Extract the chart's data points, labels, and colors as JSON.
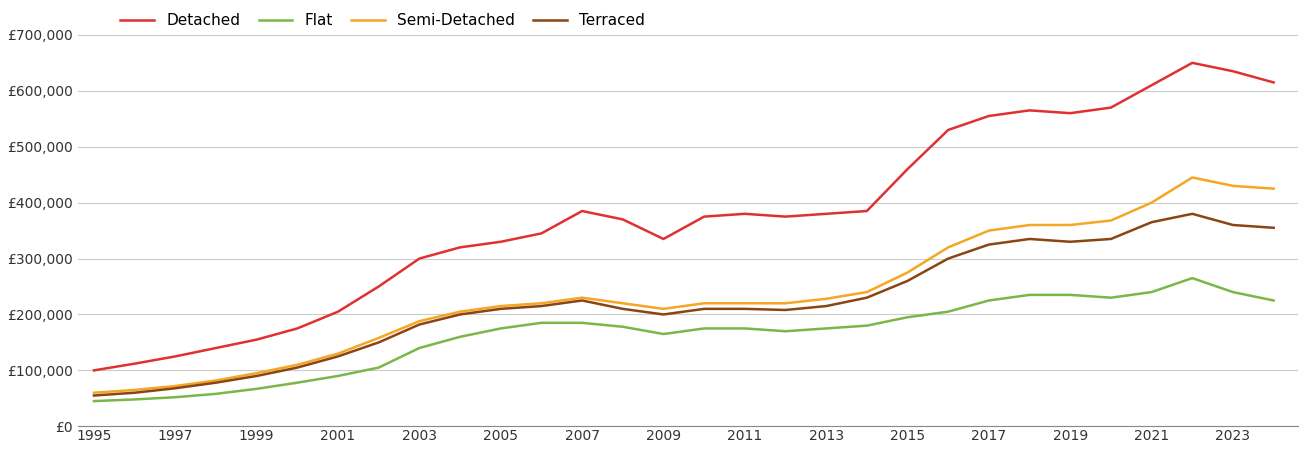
{
  "years": [
    1995,
    1996,
    1997,
    1998,
    1999,
    2000,
    2001,
    2002,
    2003,
    2004,
    2005,
    2006,
    2007,
    2008,
    2009,
    2010,
    2011,
    2012,
    2013,
    2014,
    2015,
    2016,
    2017,
    2018,
    2019,
    2020,
    2021,
    2022,
    2023,
    2024
  ],
  "detached": [
    100000,
    112000,
    125000,
    140000,
    155000,
    175000,
    205000,
    250000,
    300000,
    320000,
    330000,
    345000,
    385000,
    370000,
    335000,
    375000,
    380000,
    375000,
    380000,
    385000,
    460000,
    530000,
    555000,
    565000,
    560000,
    570000,
    610000,
    650000,
    635000,
    615000
  ],
  "flat": [
    45000,
    48000,
    52000,
    58000,
    67000,
    78000,
    90000,
    105000,
    140000,
    160000,
    175000,
    185000,
    185000,
    178000,
    165000,
    175000,
    175000,
    170000,
    175000,
    180000,
    195000,
    205000,
    225000,
    235000,
    235000,
    230000,
    240000,
    265000,
    240000,
    225000
  ],
  "semi_detached": [
    60000,
    65000,
    72000,
    82000,
    95000,
    110000,
    130000,
    158000,
    188000,
    205000,
    215000,
    220000,
    230000,
    220000,
    210000,
    220000,
    220000,
    220000,
    228000,
    240000,
    275000,
    320000,
    350000,
    360000,
    360000,
    368000,
    400000,
    445000,
    430000,
    425000
  ],
  "terraced": [
    55000,
    60000,
    68000,
    78000,
    90000,
    105000,
    125000,
    150000,
    182000,
    200000,
    210000,
    215000,
    225000,
    210000,
    200000,
    210000,
    210000,
    208000,
    215000,
    230000,
    260000,
    300000,
    325000,
    335000,
    330000,
    335000,
    365000,
    380000,
    360000,
    355000
  ],
  "colors": {
    "detached": "#e03030",
    "flat": "#7ab648",
    "semi_detached": "#f5a623",
    "terraced": "#8B4513"
  },
  "ylim": [
    0,
    750000
  ],
  "yticks": [
    0,
    100000,
    200000,
    300000,
    400000,
    500000,
    600000,
    700000
  ],
  "ytick_labels": [
    "£0",
    "£100,000",
    "£200,000",
    "£300,000",
    "£400,000",
    "£500,000",
    "£600,000",
    "£700,000"
  ],
  "legend_labels": [
    "Detached",
    "Flat",
    "Semi-Detached",
    "Terraced"
  ],
  "line_width": 1.8,
  "background_color": "#ffffff",
  "grid_color": "#cccccc"
}
